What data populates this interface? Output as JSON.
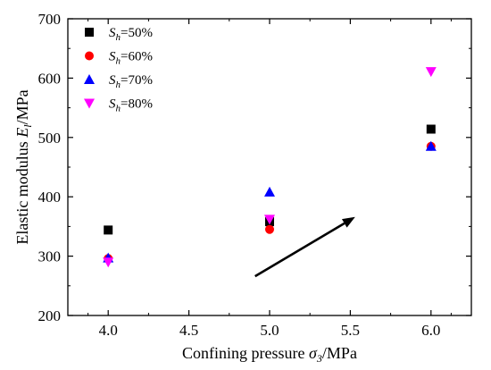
{
  "chart_data": {
    "type": "scatter",
    "xlabel": {
      "prefix": "Confining pressure ",
      "symbol": "σ",
      "sub": "3",
      "suffix": "/MPa"
    },
    "ylabel": {
      "prefix": "Elastic modulus ",
      "symbol": "E",
      "sub": "l",
      "suffix": "/MPa"
    },
    "xlim": [
      3.75,
      6.25
    ],
    "ylim": [
      200,
      700
    ],
    "x_ticks": [
      4.0,
      4.5,
      5.0,
      5.5,
      6.0
    ],
    "x_tick_labels": [
      "4.0",
      "4.5",
      "5.0",
      "5.5",
      "6.0"
    ],
    "y_ticks": [
      200,
      300,
      400,
      500,
      600,
      700
    ],
    "y_tick_labels": [
      "200",
      "300",
      "400",
      "500",
      "600",
      "700"
    ],
    "grid": false,
    "legend_position": "top-left",
    "series": [
      {
        "name_symbol": "S",
        "name_sub": "h",
        "name_suffix": "=50%",
        "marker": "square",
        "color": "#000000",
        "x": [
          4.0,
          5.0,
          6.0
        ],
        "y": [
          344,
          358,
          514
        ]
      },
      {
        "name_symbol": "S",
        "name_sub": "h",
        "name_suffix": "=60%",
        "marker": "circle",
        "color": "#ff0000",
        "x": [
          4.0,
          5.0,
          6.0
        ],
        "y": [
          296,
          345,
          485
        ]
      },
      {
        "name_symbol": "S",
        "name_sub": "h",
        "name_suffix": "=70%",
        "marker": "triangle-up",
        "color": "#0000ff",
        "x": [
          4.0,
          5.0,
          6.0
        ],
        "y": [
          297,
          408,
          485
        ]
      },
      {
        "name_symbol": "S",
        "name_sub": "h",
        "name_suffix": "=80%",
        "marker": "triangle-down",
        "color": "#ff00ff",
        "x": [
          4.0,
          5.0,
          6.0
        ],
        "y": [
          290,
          362,
          611
        ]
      }
    ],
    "annotations": [
      {
        "type": "arrow",
        "x_start": 4.91,
        "y_start": 266,
        "x_end": 5.53,
        "y_end": 366,
        "color": "#000000"
      }
    ]
  }
}
